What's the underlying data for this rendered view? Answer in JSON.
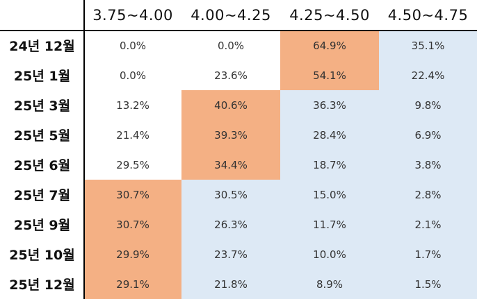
{
  "chart_data": {
    "type": "table",
    "columns": [
      "3.75~4.00",
      "4.00~4.25",
      "4.25~4.50",
      "4.50~4.75"
    ],
    "rows": [
      {
        "label": "24년 12월",
        "values": [
          "0.0%",
          "0.0%",
          "64.9%",
          "35.1%"
        ],
        "highlight": [
          false,
          false,
          true,
          false
        ]
      },
      {
        "label": "25년 1월",
        "values": [
          "0.0%",
          "23.6%",
          "54.1%",
          "22.4%"
        ],
        "highlight": [
          false,
          false,
          true,
          false
        ]
      },
      {
        "label": "25년 3월",
        "values": [
          "13.2%",
          "40.6%",
          "36.3%",
          "9.8%"
        ],
        "highlight": [
          false,
          true,
          false,
          false
        ]
      },
      {
        "label": "25년 5월",
        "values": [
          "21.4%",
          "39.3%",
          "28.4%",
          "6.9%"
        ],
        "highlight": [
          false,
          true,
          false,
          false
        ]
      },
      {
        "label": "25년 6월",
        "values": [
          "29.5%",
          "34.4%",
          "18.7%",
          "3.8%"
        ],
        "highlight": [
          false,
          true,
          false,
          false
        ]
      },
      {
        "label": "25년 7월",
        "values": [
          "30.7%",
          "30.5%",
          "15.0%",
          "2.8%"
        ],
        "highlight": [
          true,
          false,
          false,
          false
        ]
      },
      {
        "label": "25년 9월",
        "values": [
          "30.7%",
          "26.3%",
          "11.7%",
          "2.1%"
        ],
        "highlight": [
          true,
          false,
          false,
          false
        ]
      },
      {
        "label": "25년 10월",
        "values": [
          "29.9%",
          "23.7%",
          "10.0%",
          "1.7%"
        ],
        "highlight": [
          true,
          false,
          false,
          false
        ]
      },
      {
        "label": "25년 12월",
        "values": [
          "29.1%",
          "21.8%",
          "8.9%",
          "1.5%"
        ],
        "highlight": [
          true,
          false,
          false,
          false
        ]
      }
    ],
    "colors": {
      "highlight": "#f4b084",
      "above_highlight": "#dde9f5",
      "background": "#ffffff",
      "rule": "#000000"
    }
  }
}
